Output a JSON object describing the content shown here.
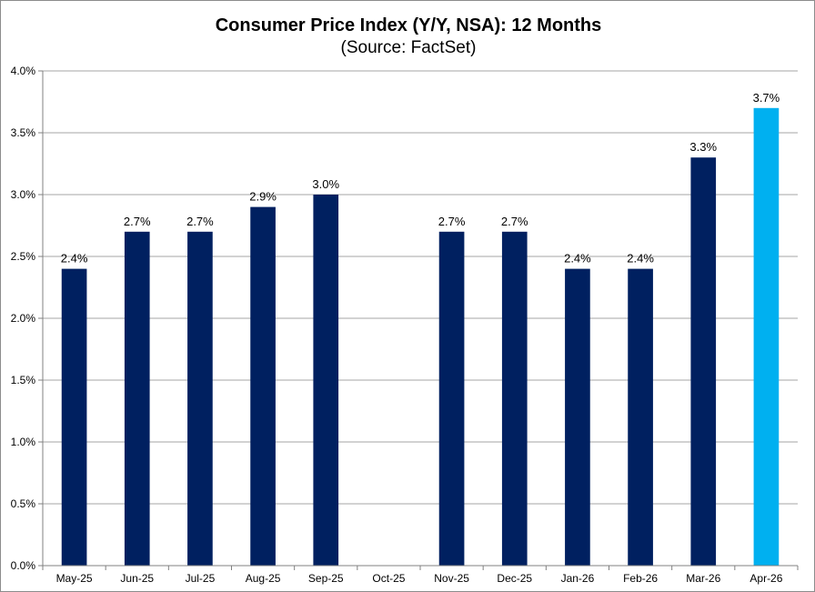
{
  "chart_data": {
    "type": "bar",
    "title": "Consumer Price Index (Y/Y, NSA): 12 Months",
    "subtitle": "(Source: FactSet)",
    "categories": [
      "May-25",
      "Jun-25",
      "Jul-25",
      "Aug-25",
      "Sep-25",
      "Oct-25",
      "Nov-25",
      "Dec-25",
      "Jan-26",
      "Feb-26",
      "Mar-26",
      "Apr-26"
    ],
    "values": [
      2.4,
      2.7,
      2.7,
      2.9,
      3.0,
      null,
      2.7,
      2.7,
      2.4,
      2.4,
      3.3,
      3.7
    ],
    "data_labels": [
      "2.4%",
      "2.7%",
      "2.7%",
      "2.9%",
      "3.0%",
      "",
      "2.7%",
      "2.7%",
      "2.4%",
      "2.4%",
      "3.3%",
      "3.7%"
    ],
    "ylim": [
      0,
      4.0
    ],
    "y_ticks": [
      0,
      0.5,
      1.0,
      1.5,
      2.0,
      2.5,
      3.0,
      3.5,
      4.0
    ],
    "y_tick_labels": [
      "0.0%",
      "0.5%",
      "1.0%",
      "1.5%",
      "2.0%",
      "2.5%",
      "3.0%",
      "3.5%",
      "4.0%"
    ],
    "xlabel": "",
    "ylabel": "",
    "grid": true,
    "legend": "none",
    "colors": {
      "bar": "#002060",
      "highlight_bar": "#00B0F0",
      "gridline": "#a6a6a6",
      "axis": "#808080"
    },
    "highlight_index": 11
  }
}
